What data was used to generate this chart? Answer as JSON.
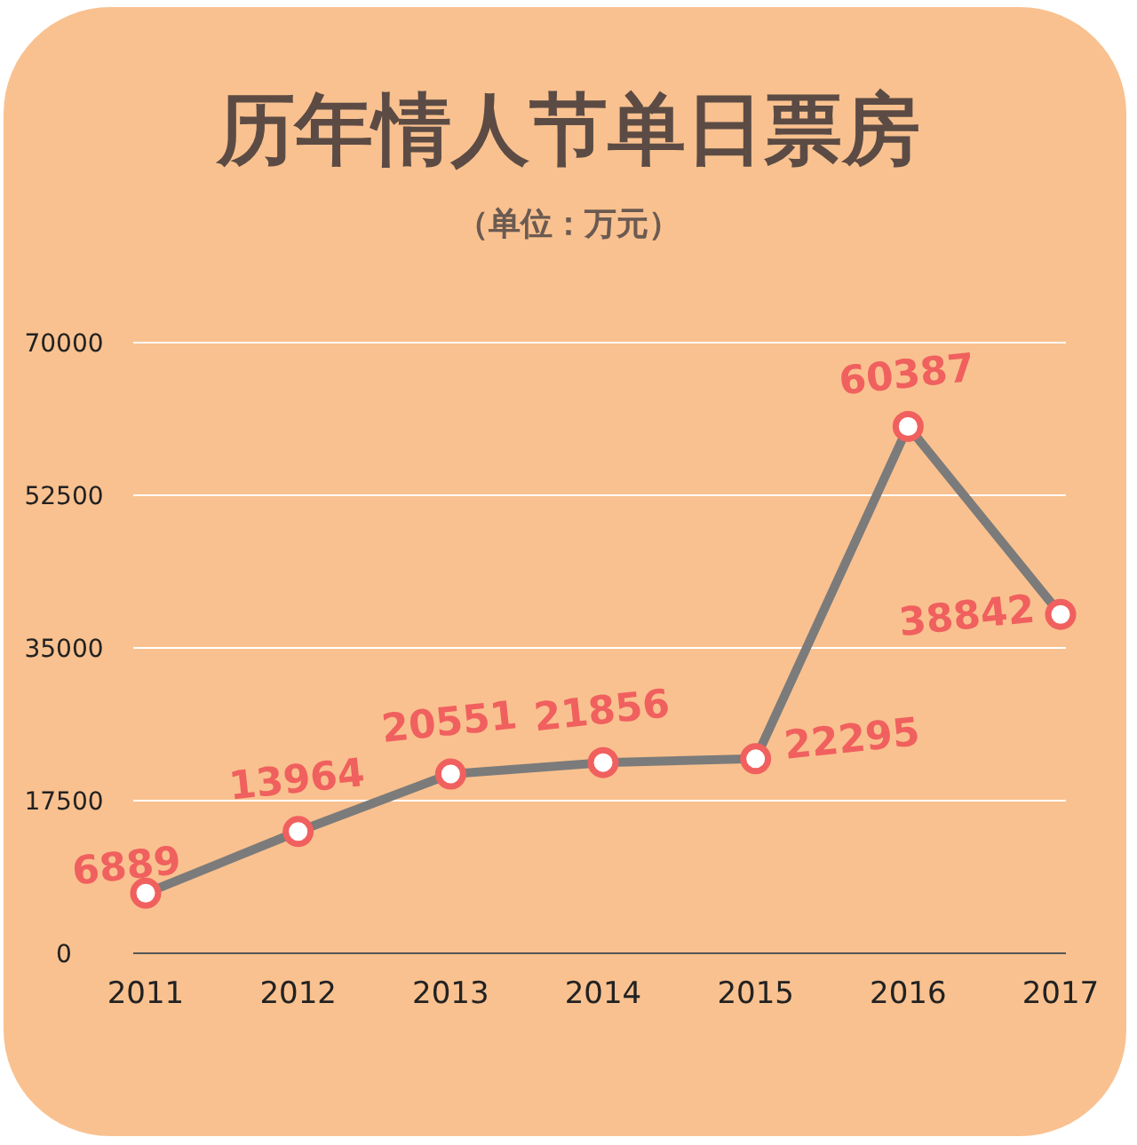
{
  "chart_data": {
    "type": "line",
    "title": "历年情人节单日票房",
    "subtitle": "（单位：万元）",
    "categories": [
      "2011",
      "2012",
      "2013",
      "2014",
      "2015",
      "2016",
      "2017"
    ],
    "series": [
      {
        "color": "#7b7b7b",
        "values": [
          6889,
          13964,
          20551,
          21856,
          22295,
          60387,
          38842
        ]
      }
    ],
    "ylim": [
      0,
      70000
    ],
    "yticks": [
      0,
      17500,
      35000,
      52500,
      70000
    ],
    "grid": "y",
    "marker": "circle",
    "data_labels": true
  }
}
